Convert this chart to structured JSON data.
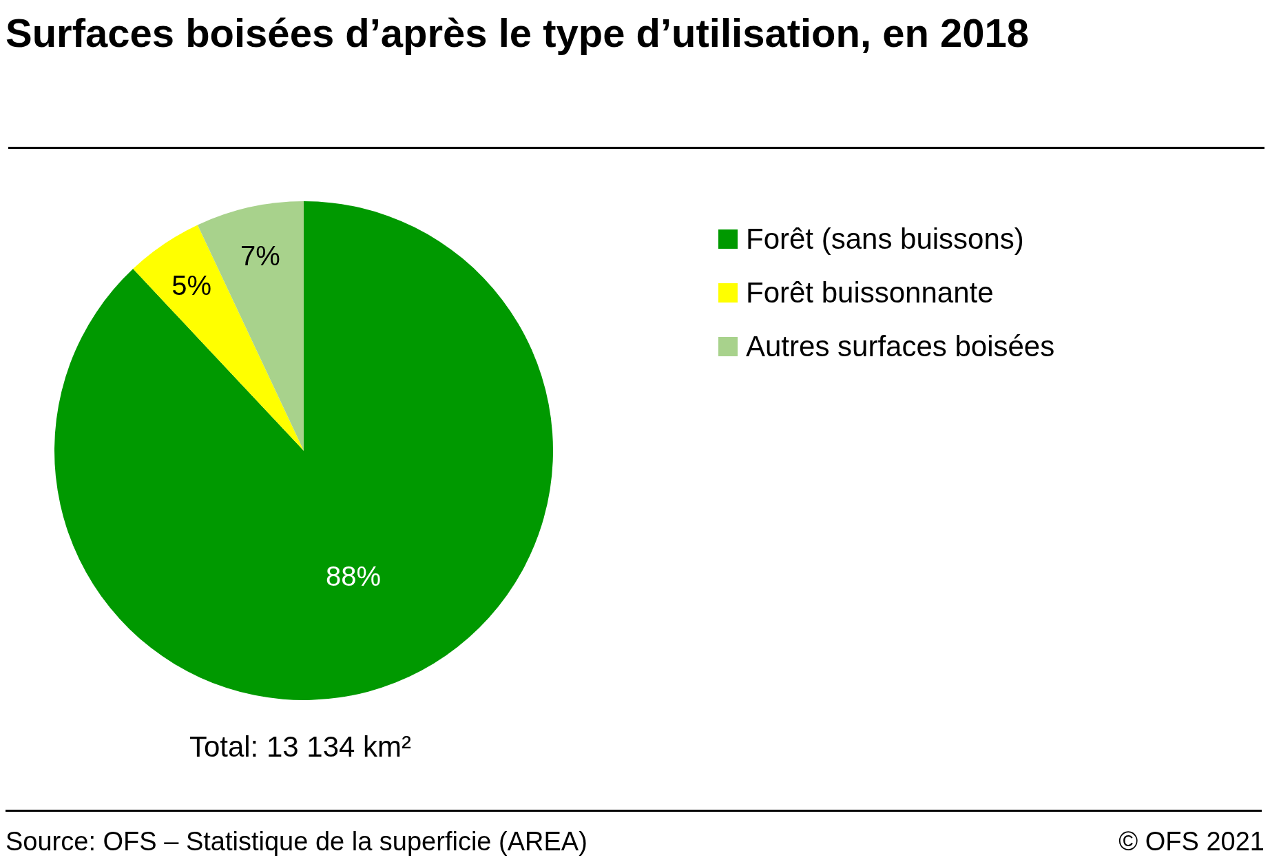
{
  "chart_data": {
    "type": "pie",
    "title": "Surfaces boisées d’après le type d’utilisation, en 2018",
    "categories": [
      "Forêt (sans buissons)",
      "Forêt buissonnante",
      "Autres surfaces boisées"
    ],
    "values": [
      88,
      5,
      7
    ],
    "colors": [
      "#009900",
      "#ffff00",
      "#a8d28c"
    ],
    "value_labels": [
      "88%",
      "5%",
      "7%"
    ],
    "legend": "top right",
    "annotations": [
      "Total: 13 134 km²",
      "Source: OFS – Statistique de la superficie (AREA)",
      "© OFS 2021"
    ]
  }
}
